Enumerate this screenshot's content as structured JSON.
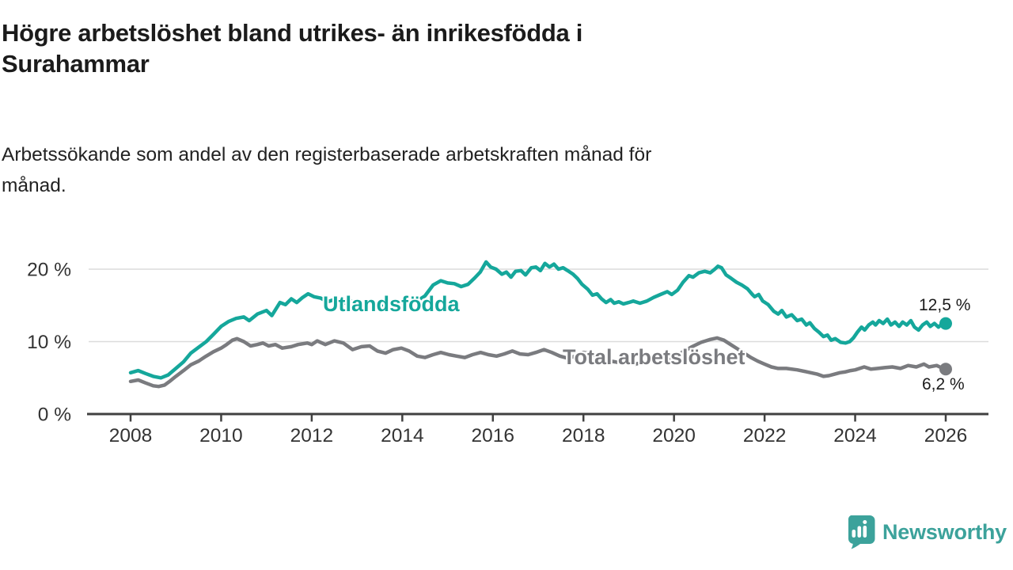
{
  "header": {
    "title_lines": [
      "Högre arbetslöshet bland utrikes- än inrikesfödda i",
      "Surahammar"
    ],
    "subtitle_lines": [
      "Arbetssökande som andel av den registerbaserade arbetskraften månad för",
      "månad."
    ]
  },
  "chart_data": {
    "type": "line",
    "title": "Högre arbetslöshet bland utrikes- än inrikesfödda i Surahammar",
    "subtitle": "Arbetssökande som andel av den registerbaserade arbetskraften månad för månad.",
    "x_unit": "year",
    "xlim": [
      2008,
      2026
    ],
    "ylim": [
      0,
      23
    ],
    "grid": "horizontal",
    "legend_position": "inline-labels",
    "x_ticks": [
      2008,
      2010,
      2012,
      2014,
      2016,
      2018,
      2020,
      2022,
      2024,
      2026
    ],
    "y_ticks": [
      {
        "value": 0,
        "label": "0 %"
      },
      {
        "value": 10,
        "label": "10 %"
      },
      {
        "value": 20,
        "label": "20 %"
      }
    ],
    "series": [
      {
        "name": "Utlandsfödda",
        "color": "#15A79B",
        "end_label": "12,5 %",
        "last_value": 12.5,
        "points": [
          [
            2008.0,
            5.7
          ],
          [
            2008.17,
            6.0
          ],
          [
            2008.33,
            5.6
          ],
          [
            2008.5,
            5.2
          ],
          [
            2008.67,
            5.0
          ],
          [
            2008.83,
            5.4
          ],
          [
            2009.0,
            6.3
          ],
          [
            2009.17,
            7.2
          ],
          [
            2009.33,
            8.4
          ],
          [
            2009.5,
            9.2
          ],
          [
            2009.67,
            10.0
          ],
          [
            2009.83,
            11.0
          ],
          [
            2010.0,
            12.1
          ],
          [
            2010.17,
            12.8
          ],
          [
            2010.33,
            13.2
          ],
          [
            2010.5,
            13.4
          ],
          [
            2010.62,
            12.9
          ],
          [
            2010.8,
            13.8
          ],
          [
            2011.0,
            14.3
          ],
          [
            2011.12,
            13.6
          ],
          [
            2011.3,
            15.4
          ],
          [
            2011.42,
            15.1
          ],
          [
            2011.55,
            15.9
          ],
          [
            2011.67,
            15.4
          ],
          [
            2011.8,
            16.1
          ],
          [
            2011.92,
            16.6
          ],
          [
            2012.05,
            16.2
          ],
          [
            2012.2,
            16.0
          ],
          [
            2012.35,
            15.5
          ],
          [
            2012.5,
            15.8
          ],
          [
            2012.7,
            15.3
          ],
          [
            2012.9,
            15.6
          ],
          [
            2013.1,
            15.1
          ],
          [
            2013.3,
            15.4
          ],
          [
            2013.5,
            14.9
          ],
          [
            2013.7,
            15.2
          ],
          [
            2013.9,
            14.8
          ],
          [
            2014.1,
            15.1
          ],
          [
            2014.3,
            15.5
          ],
          [
            2014.5,
            16.3
          ],
          [
            2014.68,
            17.8
          ],
          [
            2014.85,
            18.4
          ],
          [
            2015.0,
            18.1
          ],
          [
            2015.15,
            18.0
          ],
          [
            2015.3,
            17.6
          ],
          [
            2015.45,
            17.9
          ],
          [
            2015.6,
            18.8
          ],
          [
            2015.72,
            19.6
          ],
          [
            2015.85,
            21.0
          ],
          [
            2015.95,
            20.3
          ],
          [
            2016.07,
            20.0
          ],
          [
            2016.2,
            19.3
          ],
          [
            2016.3,
            19.6
          ],
          [
            2016.4,
            18.9
          ],
          [
            2016.5,
            19.7
          ],
          [
            2016.62,
            19.8
          ],
          [
            2016.72,
            19.2
          ],
          [
            2016.85,
            20.2
          ],
          [
            2016.95,
            20.3
          ],
          [
            2017.05,
            19.8
          ],
          [
            2017.15,
            20.8
          ],
          [
            2017.25,
            20.3
          ],
          [
            2017.35,
            20.7
          ],
          [
            2017.45,
            20.0
          ],
          [
            2017.55,
            20.2
          ],
          [
            2017.65,
            19.8
          ],
          [
            2017.77,
            19.3
          ],
          [
            2017.87,
            18.7
          ],
          [
            2017.97,
            17.9
          ],
          [
            2018.1,
            17.2
          ],
          [
            2018.2,
            16.4
          ],
          [
            2018.3,
            16.6
          ],
          [
            2018.4,
            15.9
          ],
          [
            2018.5,
            15.4
          ],
          [
            2018.6,
            15.8
          ],
          [
            2018.68,
            15.3
          ],
          [
            2018.78,
            15.5
          ],
          [
            2018.88,
            15.2
          ],
          [
            2019.0,
            15.4
          ],
          [
            2019.1,
            15.6
          ],
          [
            2019.25,
            15.3
          ],
          [
            2019.4,
            15.6
          ],
          [
            2019.55,
            16.1
          ],
          [
            2019.7,
            16.5
          ],
          [
            2019.85,
            16.9
          ],
          [
            2019.95,
            16.5
          ],
          [
            2020.08,
            17.1
          ],
          [
            2020.2,
            18.2
          ],
          [
            2020.33,
            19.1
          ],
          [
            2020.42,
            18.9
          ],
          [
            2020.55,
            19.5
          ],
          [
            2020.68,
            19.7
          ],
          [
            2020.8,
            19.5
          ],
          [
            2020.9,
            20.0
          ],
          [
            2020.97,
            20.4
          ],
          [
            2021.05,
            20.2
          ],
          [
            2021.15,
            19.2
          ],
          [
            2021.27,
            18.7
          ],
          [
            2021.38,
            18.2
          ],
          [
            2021.5,
            17.8
          ],
          [
            2021.62,
            17.3
          ],
          [
            2021.73,
            16.5
          ],
          [
            2021.78,
            16.2
          ],
          [
            2021.87,
            16.5
          ],
          [
            2021.96,
            15.6
          ],
          [
            2022.08,
            15.1
          ],
          [
            2022.2,
            14.2
          ],
          [
            2022.3,
            13.8
          ],
          [
            2022.38,
            14.3
          ],
          [
            2022.48,
            13.4
          ],
          [
            2022.6,
            13.7
          ],
          [
            2022.72,
            12.9
          ],
          [
            2022.82,
            13.1
          ],
          [
            2022.92,
            12.3
          ],
          [
            2023.0,
            12.6
          ],
          [
            2023.1,
            11.8
          ],
          [
            2023.2,
            11.3
          ],
          [
            2023.3,
            10.7
          ],
          [
            2023.39,
            10.9
          ],
          [
            2023.47,
            10.2
          ],
          [
            2023.56,
            10.4
          ],
          [
            2023.68,
            9.9
          ],
          [
            2023.79,
            9.8
          ],
          [
            2023.88,
            10.0
          ],
          [
            2023.96,
            10.5
          ],
          [
            2024.05,
            11.3
          ],
          [
            2024.14,
            12.0
          ],
          [
            2024.21,
            11.6
          ],
          [
            2024.3,
            12.3
          ],
          [
            2024.39,
            12.7
          ],
          [
            2024.45,
            12.3
          ],
          [
            2024.53,
            12.9
          ],
          [
            2024.62,
            12.5
          ],
          [
            2024.71,
            13.1
          ],
          [
            2024.79,
            12.3
          ],
          [
            2024.88,
            12.7
          ],
          [
            2024.97,
            12.1
          ],
          [
            2025.05,
            12.7
          ],
          [
            2025.14,
            12.3
          ],
          [
            2025.23,
            12.9
          ],
          [
            2025.31,
            12.0
          ],
          [
            2025.4,
            11.6
          ],
          [
            2025.49,
            12.3
          ],
          [
            2025.58,
            12.7
          ],
          [
            2025.66,
            12.1
          ],
          [
            2025.75,
            12.5
          ],
          [
            2025.84,
            12.0
          ],
          [
            2025.93,
            12.5
          ],
          [
            2026.0,
            12.5
          ]
        ]
      },
      {
        "name": "Total arbetslöshet",
        "color": "#7A7B7F",
        "end_label": "6,2 %",
        "last_value": 6.2,
        "points": [
          [
            2008.0,
            4.5
          ],
          [
            2008.17,
            4.7
          ],
          [
            2008.33,
            4.3
          ],
          [
            2008.5,
            3.9
          ],
          [
            2008.62,
            3.8
          ],
          [
            2008.75,
            4.0
          ],
          [
            2008.88,
            4.6
          ],
          [
            2009.0,
            5.2
          ],
          [
            2009.17,
            6.0
          ],
          [
            2009.33,
            6.8
          ],
          [
            2009.5,
            7.3
          ],
          [
            2009.67,
            8.0
          ],
          [
            2009.83,
            8.6
          ],
          [
            2010.0,
            9.1
          ],
          [
            2010.12,
            9.6
          ],
          [
            2010.25,
            10.2
          ],
          [
            2010.35,
            10.4
          ],
          [
            2010.5,
            10.0
          ],
          [
            2010.65,
            9.4
          ],
          [
            2010.8,
            9.6
          ],
          [
            2010.92,
            9.8
          ],
          [
            2011.05,
            9.4
          ],
          [
            2011.2,
            9.6
          ],
          [
            2011.35,
            9.1
          ],
          [
            2011.55,
            9.3
          ],
          [
            2011.7,
            9.6
          ],
          [
            2011.9,
            9.8
          ],
          [
            2012.0,
            9.6
          ],
          [
            2012.12,
            10.1
          ],
          [
            2012.3,
            9.6
          ],
          [
            2012.5,
            10.1
          ],
          [
            2012.7,
            9.8
          ],
          [
            2012.9,
            8.9
          ],
          [
            2013.1,
            9.3
          ],
          [
            2013.28,
            9.4
          ],
          [
            2013.45,
            8.7
          ],
          [
            2013.63,
            8.4
          ],
          [
            2013.8,
            8.9
          ],
          [
            2013.98,
            9.1
          ],
          [
            2014.15,
            8.7
          ],
          [
            2014.33,
            8.0
          ],
          [
            2014.5,
            7.8
          ],
          [
            2014.68,
            8.2
          ],
          [
            2014.85,
            8.5
          ],
          [
            2015.03,
            8.2
          ],
          [
            2015.2,
            8.0
          ],
          [
            2015.38,
            7.8
          ],
          [
            2015.55,
            8.2
          ],
          [
            2015.73,
            8.5
          ],
          [
            2015.9,
            8.2
          ],
          [
            2016.08,
            8.0
          ],
          [
            2016.25,
            8.3
          ],
          [
            2016.43,
            8.7
          ],
          [
            2016.6,
            8.3
          ],
          [
            2016.78,
            8.2
          ],
          [
            2016.95,
            8.5
          ],
          [
            2017.13,
            8.9
          ],
          [
            2017.3,
            8.5
          ],
          [
            2017.48,
            8.0
          ],
          [
            2017.65,
            7.7
          ],
          [
            2017.83,
            8.0
          ],
          [
            2018.0,
            8.5
          ],
          [
            2018.18,
            8.3
          ],
          [
            2018.35,
            7.8
          ],
          [
            2018.53,
            7.4
          ],
          [
            2018.7,
            7.2
          ],
          [
            2018.85,
            7.0
          ],
          [
            2019.0,
            7.2
          ],
          [
            2019.15,
            6.9
          ],
          [
            2019.3,
            7.1
          ],
          [
            2019.5,
            7.3
          ],
          [
            2019.7,
            7.1
          ],
          [
            2019.85,
            7.3
          ],
          [
            2020.0,
            7.8
          ],
          [
            2020.2,
            8.6
          ],
          [
            2020.4,
            9.3
          ],
          [
            2020.6,
            9.9
          ],
          [
            2020.8,
            10.3
          ],
          [
            2020.95,
            10.5
          ],
          [
            2021.1,
            10.2
          ],
          [
            2021.25,
            9.6
          ],
          [
            2021.4,
            9.0
          ],
          [
            2021.55,
            8.4
          ],
          [
            2021.7,
            7.8
          ],
          [
            2021.85,
            7.3
          ],
          [
            2022.0,
            6.9
          ],
          [
            2022.15,
            6.5
          ],
          [
            2022.3,
            6.3
          ],
          [
            2022.48,
            6.3
          ],
          [
            2022.72,
            6.1
          ],
          [
            2022.95,
            5.8
          ],
          [
            2023.17,
            5.5
          ],
          [
            2023.3,
            5.2
          ],
          [
            2023.42,
            5.3
          ],
          [
            2023.54,
            5.5
          ],
          [
            2023.66,
            5.7
          ],
          [
            2023.77,
            5.8
          ],
          [
            2023.9,
            6.0
          ],
          [
            2024.0,
            6.1
          ],
          [
            2024.2,
            6.5
          ],
          [
            2024.35,
            6.2
          ],
          [
            2024.5,
            6.3
          ],
          [
            2024.65,
            6.4
          ],
          [
            2024.82,
            6.5
          ],
          [
            2025.0,
            6.3
          ],
          [
            2025.17,
            6.7
          ],
          [
            2025.35,
            6.5
          ],
          [
            2025.52,
            6.9
          ],
          [
            2025.63,
            6.5
          ],
          [
            2025.8,
            6.7
          ],
          [
            2025.9,
            6.4
          ],
          [
            2026.0,
            6.2
          ]
        ]
      }
    ]
  },
  "branding": {
    "logo_text": "Newsworthy",
    "logo_color": "#3CA29B"
  }
}
